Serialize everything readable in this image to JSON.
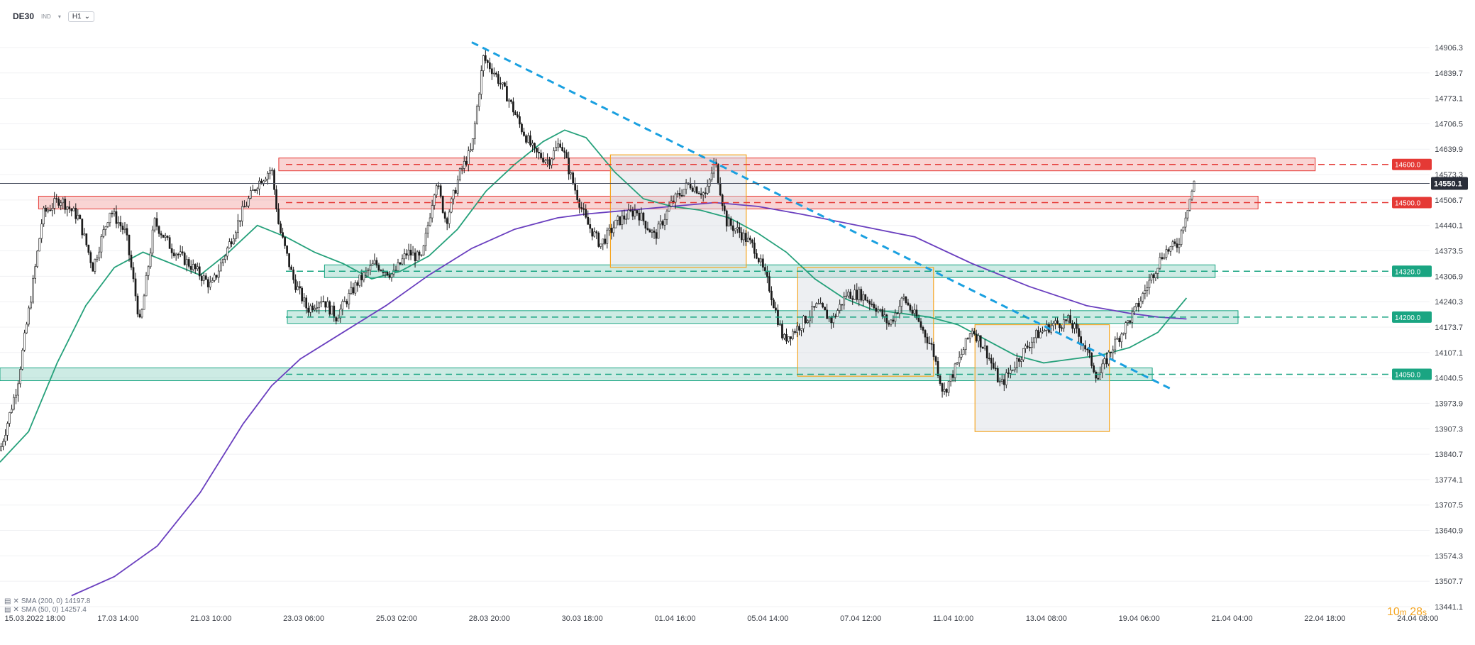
{
  "header": {
    "symbol": "DE30",
    "subtitle": "IND",
    "timeframe": "H1"
  },
  "legend": [
    {
      "label": "SMA (200, 0)",
      "value": "14197.8"
    },
    {
      "label": "SMA (50, 0)",
      "value": "14257.4"
    }
  ],
  "timer": {
    "minutes": "10",
    "m_label": "m",
    "seconds": "28",
    "s_label": "s"
  },
  "colors": {
    "up": "#ffffff",
    "down": "#1a1a1a",
    "sma50": "#26a17b",
    "sma200": "#6a3fbf",
    "trend": "#1aa0e0",
    "resistance": "#e53935",
    "support": "#1aa582",
    "consolidation": "#f5a623"
  },
  "chart_data": {
    "type": "candlestick",
    "instrument": "DE30",
    "timeframe": "H1",
    "ylim": [
      13441.1,
      14975
    ],
    "y_ticks": [
      "14906.3",
      "14839.7",
      "14773.1",
      "14706.5",
      "14639.9",
      "14573.3",
      "14506.7",
      "14440.1",
      "14373.5",
      "14306.9",
      "14240.3",
      "14173.7",
      "14107.1",
      "14040.5",
      "13973.9",
      "13907.3",
      "13840.7",
      "13774.1",
      "13707.5",
      "13640.9",
      "13574.3",
      "13507.7",
      "13441.1"
    ],
    "x_ticks": [
      "15.03.2022  18:00",
      "17.03  14:00",
      "21.03  10:00",
      "23.03  06:00",
      "25.03  02:00",
      "28.03  20:00",
      "30.03  18:00",
      "01.04  16:00",
      "05.04  14:00",
      "07.04  12:00",
      "11.04  10:00",
      "13.04  08:00",
      "19.04  06:00",
      "21.04  04:00",
      "22.04  18:00",
      "24.04  08:00"
    ],
    "last_price": "14550.1",
    "price_levels": [
      {
        "value": 14600,
        "label": "14600.0",
        "kind": "resistance"
      },
      {
        "value": 14500,
        "label": "14500.0",
        "kind": "resistance"
      },
      {
        "value": 14320,
        "label": "14320.0",
        "kind": "support"
      },
      {
        "value": 14200,
        "label": "14200.0",
        "kind": "support"
      },
      {
        "value": 14050,
        "label": "14050.0",
        "kind": "support"
      }
    ],
    "trendline": {
      "from": {
        "bar": 0.33,
        "price": 14920
      },
      "to": {
        "bar": 0.82,
        "price": 14010
      }
    },
    "price_path": [
      [
        0.0,
        13850
      ],
      [
        0.012,
        14020
      ],
      [
        0.022,
        14260
      ],
      [
        0.03,
        14470
      ],
      [
        0.042,
        14510
      ],
      [
        0.055,
        14460
      ],
      [
        0.065,
        14330
      ],
      [
        0.077,
        14480
      ],
      [
        0.088,
        14420
      ],
      [
        0.098,
        14180
      ],
      [
        0.108,
        14450
      ],
      [
        0.12,
        14380
      ],
      [
        0.135,
        14330
      ],
      [
        0.148,
        14280
      ],
      [
        0.158,
        14370
      ],
      [
        0.17,
        14480
      ],
      [
        0.18,
        14550
      ],
      [
        0.19,
        14590
      ],
      [
        0.195,
        14440
      ],
      [
        0.205,
        14300
      ],
      [
        0.215,
        14220
      ],
      [
        0.225,
        14250
      ],
      [
        0.235,
        14200
      ],
      [
        0.25,
        14290
      ],
      [
        0.262,
        14340
      ],
      [
        0.275,
        14310
      ],
      [
        0.285,
        14370
      ],
      [
        0.295,
        14350
      ],
      [
        0.305,
        14560
      ],
      [
        0.312,
        14450
      ],
      [
        0.322,
        14580
      ],
      [
        0.33,
        14640
      ],
      [
        0.338,
        14880
      ],
      [
        0.346,
        14840
      ],
      [
        0.356,
        14770
      ],
      [
        0.364,
        14700
      ],
      [
        0.374,
        14630
      ],
      [
        0.384,
        14610
      ],
      [
        0.392,
        14660
      ],
      [
        0.4,
        14560
      ],
      [
        0.41,
        14450
      ],
      [
        0.42,
        14390
      ],
      [
        0.432,
        14450
      ],
      [
        0.445,
        14480
      ],
      [
        0.458,
        14410
      ],
      [
        0.47,
        14500
      ],
      [
        0.482,
        14550
      ],
      [
        0.494,
        14520
      ],
      [
        0.5,
        14610
      ],
      [
        0.508,
        14450
      ],
      [
        0.518,
        14420
      ],
      [
        0.528,
        14380
      ],
      [
        0.538,
        14280
      ],
      [
        0.548,
        14140
      ],
      [
        0.56,
        14180
      ],
      [
        0.572,
        14230
      ],
      [
        0.582,
        14190
      ],
      [
        0.592,
        14260
      ],
      [
        0.602,
        14260
      ],
      [
        0.612,
        14230
      ],
      [
        0.622,
        14180
      ],
      [
        0.632,
        14250
      ],
      [
        0.642,
        14190
      ],
      [
        0.652,
        14120
      ],
      [
        0.66,
        14000
      ],
      [
        0.67,
        14080
      ],
      [
        0.68,
        14170
      ],
      [
        0.69,
        14110
      ],
      [
        0.7,
        14020
      ],
      [
        0.712,
        14090
      ],
      [
        0.724,
        14150
      ],
      [
        0.736,
        14180
      ],
      [
        0.748,
        14190
      ],
      [
        0.758,
        14130
      ],
      [
        0.768,
        14040
      ],
      [
        0.778,
        14120
      ],
      [
        0.788,
        14180
      ],
      [
        0.796,
        14230
      ],
      [
        0.806,
        14310
      ],
      [
        0.814,
        14370
      ],
      [
        0.824,
        14390
      ],
      [
        0.83,
        14480
      ],
      [
        0.836,
        14560
      ]
    ],
    "series": [
      {
        "name": "SMA (50, 0)",
        "value": 14257.4,
        "points": [
          [
            0.0,
            13820
          ],
          [
            0.02,
            13900
          ],
          [
            0.04,
            14080
          ],
          [
            0.06,
            14230
          ],
          [
            0.08,
            14330
          ],
          [
            0.1,
            14370
          ],
          [
            0.12,
            14340
          ],
          [
            0.14,
            14310
          ],
          [
            0.16,
            14370
          ],
          [
            0.18,
            14440
          ],
          [
            0.2,
            14410
          ],
          [
            0.22,
            14370
          ],
          [
            0.24,
            14340
          ],
          [
            0.26,
            14300
          ],
          [
            0.28,
            14320
          ],
          [
            0.3,
            14360
          ],
          [
            0.32,
            14430
          ],
          [
            0.34,
            14530
          ],
          [
            0.36,
            14600
          ],
          [
            0.38,
            14660
          ],
          [
            0.395,
            14690
          ],
          [
            0.41,
            14670
          ],
          [
            0.43,
            14580
          ],
          [
            0.45,
            14510
          ],
          [
            0.47,
            14490
          ],
          [
            0.49,
            14480
          ],
          [
            0.51,
            14460
          ],
          [
            0.53,
            14420
          ],
          [
            0.55,
            14370
          ],
          [
            0.57,
            14300
          ],
          [
            0.59,
            14250
          ],
          [
            0.61,
            14220
          ],
          [
            0.63,
            14210
          ],
          [
            0.65,
            14200
          ],
          [
            0.67,
            14180
          ],
          [
            0.69,
            14140
          ],
          [
            0.71,
            14100
          ],
          [
            0.73,
            14080
          ],
          [
            0.75,
            14090
          ],
          [
            0.77,
            14100
          ],
          [
            0.79,
            14120
          ],
          [
            0.81,
            14160
          ],
          [
            0.83,
            14250
          ]
        ]
      },
      {
        "name": "SMA (200, 0)",
        "value": 14197.8,
        "points": [
          [
            0.05,
            13470
          ],
          [
            0.08,
            13520
          ],
          [
            0.11,
            13600
          ],
          [
            0.14,
            13740
          ],
          [
            0.17,
            13920
          ],
          [
            0.19,
            14020
          ],
          [
            0.21,
            14090
          ],
          [
            0.24,
            14160
          ],
          [
            0.27,
            14230
          ],
          [
            0.3,
            14310
          ],
          [
            0.33,
            14380
          ],
          [
            0.36,
            14430
          ],
          [
            0.39,
            14460
          ],
          [
            0.41,
            14470
          ],
          [
            0.44,
            14480
          ],
          [
            0.47,
            14490
          ],
          [
            0.5,
            14500
          ],
          [
            0.53,
            14490
          ],
          [
            0.56,
            14470
          ],
          [
            0.6,
            14440
          ],
          [
            0.64,
            14410
          ],
          [
            0.68,
            14340
          ],
          [
            0.72,
            14280
          ],
          [
            0.76,
            14230
          ],
          [
            0.79,
            14210
          ],
          [
            0.81,
            14200
          ],
          [
            0.83,
            14195
          ]
        ]
      }
    ]
  }
}
